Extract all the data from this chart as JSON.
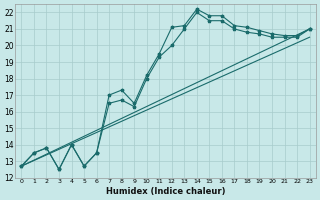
{
  "xlabel": "Humidex (Indice chaleur)",
  "bg_color": "#c8e8e8",
  "grid_color": "#a8cccc",
  "line_color": "#1a6b6b",
  "xlim": [
    -0.5,
    23.5
  ],
  "ylim": [
    12,
    22.5
  ],
  "xticks": [
    0,
    1,
    2,
    3,
    4,
    5,
    6,
    7,
    8,
    9,
    10,
    11,
    12,
    13,
    14,
    15,
    16,
    17,
    18,
    19,
    20,
    21,
    22,
    23
  ],
  "yticks": [
    12,
    13,
    14,
    15,
    16,
    17,
    18,
    19,
    20,
    21,
    22
  ],
  "line1_x": [
    0,
    1,
    2,
    3,
    4,
    5,
    6,
    7,
    8,
    9,
    10,
    11,
    12,
    13,
    14,
    15,
    16,
    17,
    18,
    19,
    20,
    21,
    22,
    23
  ],
  "line1_y": [
    12.7,
    13.5,
    13.8,
    12.5,
    14.0,
    12.7,
    13.5,
    17.0,
    17.3,
    16.5,
    18.2,
    19.5,
    21.1,
    21.2,
    22.2,
    21.8,
    21.8,
    21.2,
    21.1,
    20.9,
    20.7,
    20.6,
    20.6,
    21.0
  ],
  "line2_x": [
    0,
    1,
    2,
    3,
    4,
    5,
    6,
    7,
    8,
    9,
    10,
    11,
    12,
    13,
    14,
    15,
    16,
    17,
    18,
    19,
    20,
    21,
    22,
    23
  ],
  "line2_y": [
    12.7,
    13.5,
    13.8,
    12.5,
    14.0,
    12.7,
    13.5,
    16.5,
    16.7,
    16.3,
    18.0,
    19.3,
    20.0,
    21.0,
    22.0,
    21.5,
    21.5,
    21.0,
    20.8,
    20.7,
    20.5,
    20.5,
    20.5,
    21.0
  ],
  "line3_x": [
    0,
    23
  ],
  "line3_y": [
    12.7,
    21.0
  ],
  "line4_x": [
    0,
    23
  ],
  "line4_y": [
    12.7,
    20.5
  ]
}
